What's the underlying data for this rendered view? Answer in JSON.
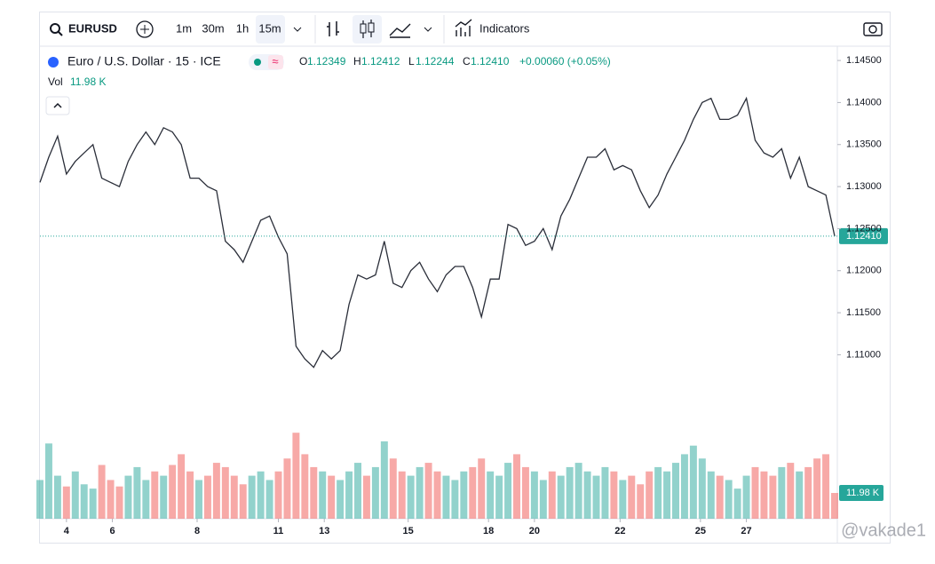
{
  "toolbar": {
    "symbol": "EURUSD",
    "intervals": [
      "1m",
      "30m",
      "1h",
      "15m"
    ],
    "indicators": "Indicators"
  },
  "legend": {
    "title": "Euro / U.S. Dollar · 15 · ICE",
    "o_key": "O",
    "o": "1.12349",
    "h_key": "H",
    "h": "1.12412",
    "l_key": "L",
    "l": "1.12244",
    "c_key": "C",
    "c": "1.12410",
    "change": "+0.00060 (+0.05%)",
    "vol_key": "Vol",
    "vol": "11.98 K"
  },
  "watermark": "@vakade1",
  "chart_data": {
    "type": "line",
    "ylim": [
      1.0905,
      1.1467
    ],
    "yticks": [
      {
        "value": 1.145,
        "label": "1.14500"
      },
      {
        "value": 1.14,
        "label": "1.14000"
      },
      {
        "value": 1.135,
        "label": "1.13500"
      },
      {
        "value": 1.13,
        "label": "1.13000"
      },
      {
        "value": 1.125,
        "label": "1.12500"
      },
      {
        "value": 1.12,
        "label": "1.12000"
      },
      {
        "value": 1.115,
        "label": "1.11500"
      },
      {
        "value": 1.11,
        "label": "1.11000"
      }
    ],
    "xlim": [
      0,
      90
    ],
    "xticks": [
      {
        "value": 3,
        "label": "4"
      },
      {
        "value": 8.2,
        "label": "6"
      },
      {
        "value": 17.8,
        "label": "8"
      },
      {
        "value": 27,
        "label": "11"
      },
      {
        "value": 32.2,
        "label": "13"
      },
      {
        "value": 41.7,
        "label": "15"
      },
      {
        "value": 50.8,
        "label": "18"
      },
      {
        "value": 56,
        "label": "20"
      },
      {
        "value": 65.7,
        "label": "22"
      },
      {
        "value": 74.8,
        "label": "25"
      },
      {
        "value": 80,
        "label": "27"
      }
    ],
    "grid": false,
    "up_color": "#26a69a",
    "down_color": "#ef5350",
    "price_label": {
      "value": 1.1241,
      "label": "1.12410"
    },
    "volume_label": {
      "value": 11.98,
      "label": "11.98 K"
    },
    "series": [
      {
        "name": "EURUSD",
        "color": "#2a2e39",
        "values": [
          1.1305,
          1.1335,
          1.136,
          1.1315,
          1.133,
          1.134,
          1.135,
          1.131,
          1.1305,
          1.13,
          1.133,
          1.135,
          1.1365,
          1.135,
          1.137,
          1.1365,
          1.135,
          1.131,
          1.131,
          1.13,
          1.1295,
          1.1235,
          1.1225,
          1.121,
          1.1235,
          1.126,
          1.1265,
          1.124,
          1.122,
          1.111,
          1.1095,
          1.1085,
          1.1105,
          1.1095,
          1.1105,
          1.116,
          1.1195,
          1.119,
          1.1195,
          1.1235,
          1.1185,
          1.118,
          1.12,
          1.121,
          1.119,
          1.1175,
          1.1195,
          1.1205,
          1.1205,
          1.118,
          1.1145,
          1.119,
          1.119,
          1.1255,
          1.125,
          1.123,
          1.1235,
          1.125,
          1.1225,
          1.1265,
          1.1285,
          1.131,
          1.1335,
          1.1335,
          1.1345,
          1.132,
          1.1325,
          1.132,
          1.1295,
          1.1275,
          1.129,
          1.1315,
          1.1335,
          1.1355,
          1.138,
          1.14,
          1.1405,
          1.138,
          1.138,
          1.1385,
          1.1405,
          1.1355,
          1.134,
          1.1335,
          1.1345,
          1.131,
          1.1335,
          1.13,
          1.1295,
          1.129,
          1.1241
        ]
      },
      {
        "name": "Vol",
        "values": [
          18,
          35,
          20,
          15,
          22,
          16,
          14,
          25,
          18,
          15,
          20,
          24,
          18,
          22,
          20,
          25,
          30,
          22,
          18,
          20,
          26,
          24,
          20,
          16,
          20,
          22,
          18,
          22,
          28,
          40,
          30,
          24,
          22,
          20,
          18,
          22,
          26,
          20,
          24,
          36,
          28,
          22,
          20,
          24,
          26,
          22,
          20,
          18,
          22,
          24,
          28,
          22,
          20,
          26,
          30,
          24,
          22,
          18,
          22,
          20,
          24,
          26,
          22,
          20,
          24,
          22,
          18,
          20,
          16,
          22,
          24,
          22,
          26,
          30,
          34,
          28,
          22,
          20,
          18,
          14,
          20,
          24,
          22,
          20,
          24,
          26,
          22,
          24,
          28,
          30,
          11.98
        ]
      }
    ]
  }
}
